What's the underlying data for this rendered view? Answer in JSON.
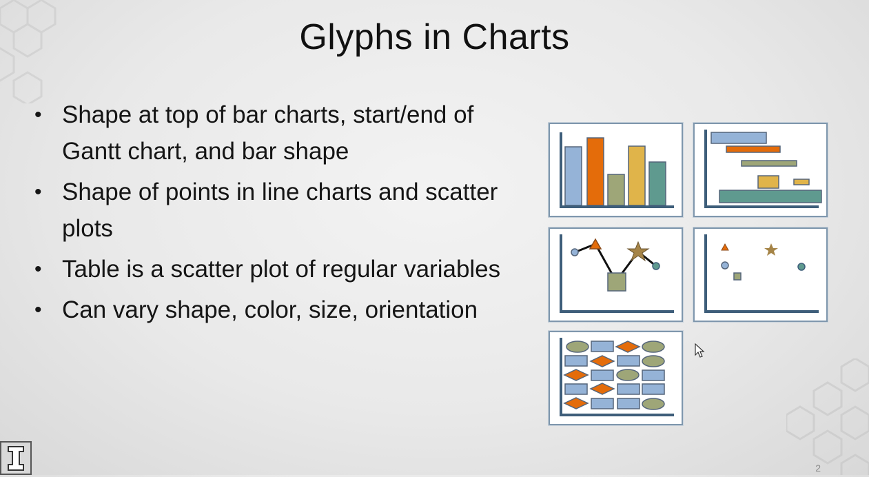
{
  "slide": {
    "title": "Glyphs in Charts",
    "bullets": [
      "Shape at top of bar charts, start/end of Gantt chart, and bar shape",
      "Shape of points in line charts and scatter plots",
      "Table is a scatter plot of regular variables",
      "Can vary shape, color, size, orientation"
    ],
    "bullet_symbol": "•",
    "page_number": "2"
  },
  "colors": {
    "blue": "#95b3d7",
    "orange": "#e46c0a",
    "olive": "#9ea678",
    "gold": "#e0b44a",
    "teal": "#5f9a8f",
    "axis": "#3e5e7a",
    "star": "#a58447"
  },
  "icons": {
    "logo": "block-i-logo-icon",
    "cursor": "mouse-pointer-icon"
  }
}
